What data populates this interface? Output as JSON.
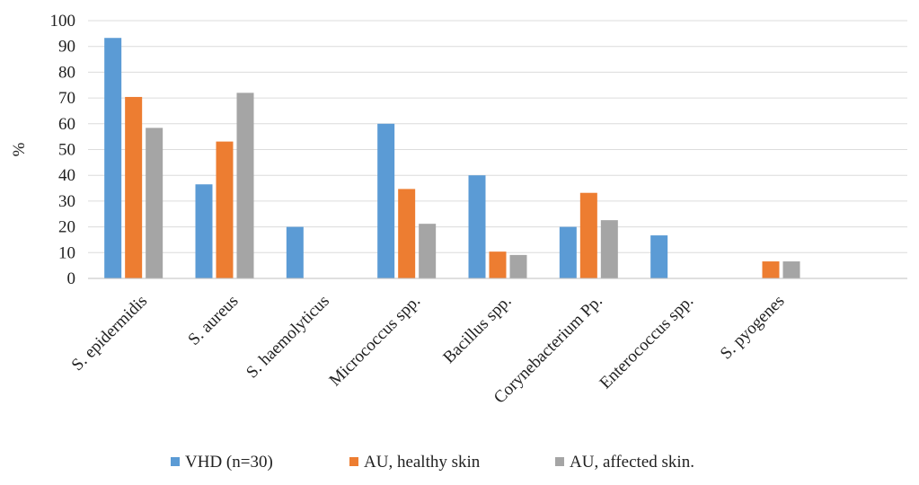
{
  "chart_data": {
    "type": "bar",
    "title": "",
    "xlabel": "",
    "ylabel": "%",
    "ylim": [
      0,
      100
    ],
    "yticks": [
      0,
      10,
      20,
      30,
      40,
      50,
      60,
      70,
      80,
      90,
      100
    ],
    "grid": true,
    "legend_position": "bottom",
    "categories": [
      "S. epidermidis",
      "S. aureus",
      "S. haemolyticus",
      "Micrococcus spp.",
      "Bacillus spp.",
      "Corynebacterium Pp.",
      "Enterococcus spp.",
      "S. pyogenes",
      ""
    ],
    "series": [
      {
        "name": "VHD (n=30)",
        "color": "#5b9bd5",
        "values": [
          93.3,
          36.5,
          20,
          60,
          40,
          20,
          16.7,
          0,
          0
        ]
      },
      {
        "name": "AU, healthy skin",
        "color": "#ed7d31",
        "values": [
          70.4,
          53.1,
          0,
          34.7,
          10.4,
          33.2,
          0,
          6.6,
          0
        ]
      },
      {
        "name": "AU, affected skin.",
        "color": "#a5a5a5",
        "values": [
          58.4,
          72,
          0,
          21.2,
          9.1,
          22.6,
          0,
          6.6,
          0
        ]
      }
    ]
  }
}
